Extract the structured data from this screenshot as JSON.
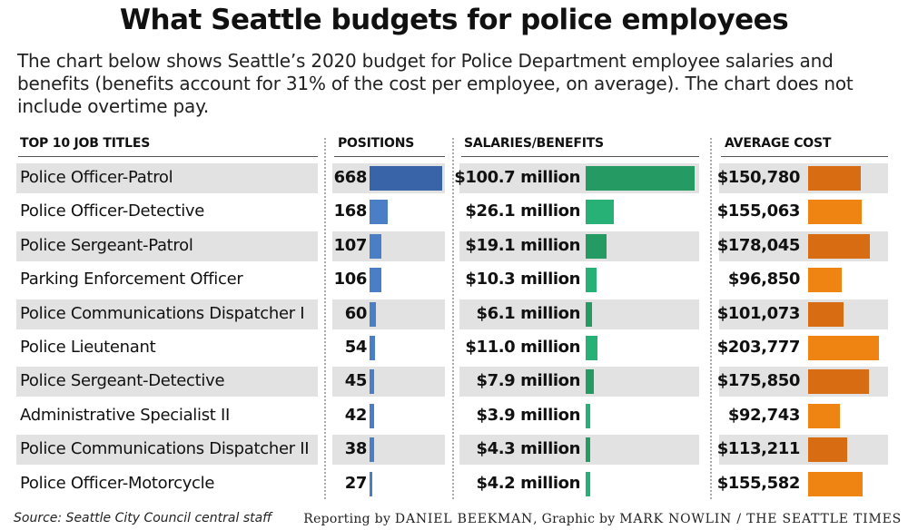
{
  "title": "What Seattle budgets for police employees",
  "subtitle": "The chart below shows Seattle’s 2020 budget for Police Department employee salaries and benefits (benefits account for 31% of the cost per employee, on average). The chart does not include overtime pay.",
  "colors": {
    "positions": "#3f6fb4",
    "salaries": "#259a63",
    "salaries_light": "#27b176",
    "cost": "#d86c12",
    "cost_light": "#ef8413",
    "shade": "#e2e2e2"
  },
  "chart_data": {
    "type": "table",
    "columns": [
      "TOP 10 JOB TITLES",
      "POSITIONS",
      "SALARIES/BENEFITS",
      "AVERAGE COST"
    ],
    "categories": [
      "Police Officer-Patrol",
      "Police Officer-Detective",
      "Police Sergeant-Patrol",
      "Parking Enforcement Officer",
      "Police Communications Dispatcher I",
      "Police Lieutenant",
      "Police Sergeant-Detective",
      "Administrative Specialist II",
      "Police Communications Dispatcher II",
      "Police Officer-Motorcycle"
    ],
    "series": [
      {
        "name": "POSITIONS",
        "values": [
          668,
          168,
          107,
          106,
          60,
          54,
          45,
          42,
          38,
          27
        ],
        "labels": [
          "668",
          "168",
          "107",
          "106",
          "60",
          "54",
          "45",
          "42",
          "38",
          "27"
        ]
      },
      {
        "name": "SALARIES/BENEFITS",
        "unit": "million",
        "values": [
          100.7,
          26.1,
          19.1,
          10.3,
          6.1,
          11.0,
          7.9,
          3.9,
          4.3,
          4.2
        ],
        "labels": [
          "$100.7 million",
          "$26.1 million",
          "$19.1 million",
          "$10.3 million",
          "$6.1 million",
          "$11.0 million",
          "$7.9 million",
          "$3.9 million",
          "$4.3 million",
          "$4.2 million"
        ]
      },
      {
        "name": "AVERAGE COST",
        "values": [
          150780,
          155063,
          178045,
          96850,
          101073,
          203777,
          175850,
          92743,
          113211,
          155582
        ],
        "labels": [
          "$150,780",
          "$155,063",
          "$178,045",
          "$96,850",
          "$101,073",
          "$203,777",
          "$175,850",
          "$92,743",
          "$113,211",
          "$155,582"
        ]
      }
    ]
  },
  "footer": {
    "source": "Source: Seattle City Council central staff",
    "reporting_prefix": "Reporting by",
    "reporter": "DANIEL BEEKMAN",
    "graphic_prefix": ", Graphic by",
    "designer": "MARK NOWLIN",
    "outlet": " / THE SEATTLE TIMES"
  }
}
